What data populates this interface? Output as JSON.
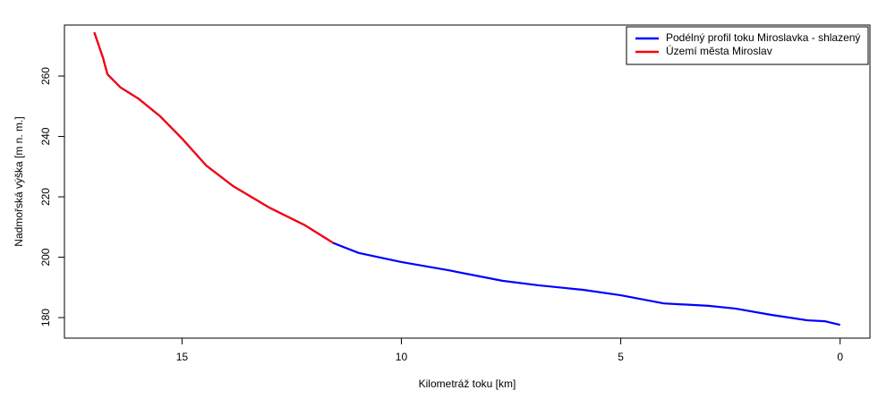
{
  "chart_data": {
    "type": "line",
    "xlabel": "Kilometráž toku [km]",
    "ylabel": "Nadmořská výška [m n. m.]",
    "x": [
      17.0,
      16.8,
      16.7,
      16.4,
      16.0,
      15.5,
      15.0,
      14.45,
      13.84,
      13.02,
      12.2,
      11.55,
      10.97,
      10.0,
      8.93,
      7.7,
      6.88,
      5.86,
      5.0,
      4.02,
      3.0,
      2.39,
      1.57,
      0.75,
      0.35,
      0.0
    ],
    "series": [
      {
        "name": "Podélný profil toku Miroslavka - shlazený",
        "color": "#0000ff",
        "values": [
          274.5,
          266,
          260.6,
          256.2,
          252.6,
          246.7,
          239.3,
          230.4,
          223.6,
          216.5,
          210.6,
          204.7,
          201.4,
          198.4,
          195.7,
          192.2,
          190.7,
          189.2,
          187.4,
          184.7,
          183.9,
          183.0,
          180.9,
          179.1,
          178.8,
          177.6
        ]
      },
      {
        "name": "Území města Miroslav",
        "color": "#ff0000",
        "values": [
          274.5,
          266,
          260.6,
          256.2,
          252.6,
          246.7,
          239.3,
          230.4,
          223.6,
          216.5,
          210.6,
          204.7,
          null,
          null,
          null,
          null,
          null,
          null,
          null,
          null,
          null,
          null,
          null,
          null,
          null,
          null
        ]
      }
    ],
    "xlim": [
      17.68,
      -0.68
    ],
    "xticks": [
      15,
      10,
      5,
      0
    ],
    "ylim": [
      173.2,
      276.9
    ],
    "yticks": [
      180,
      200,
      220,
      240,
      260
    ],
    "legend": "top-right"
  }
}
